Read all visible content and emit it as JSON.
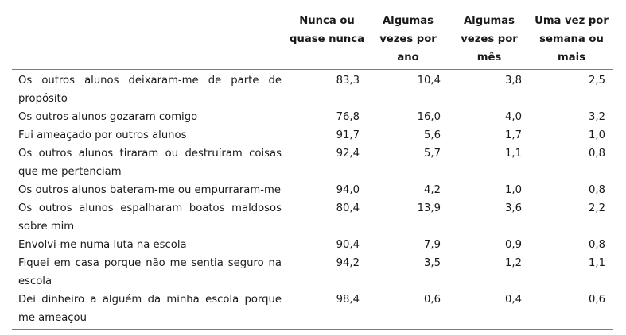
{
  "table": {
    "columns": [
      "Nunca ou quase nunca",
      "Algumas vezes por ano",
      "Algumas vezes por mês",
      "Uma vez por semana ou mais"
    ],
    "rows": [
      {
        "label": "Os outros alunos deixaram-me de parte de propósito",
        "values": [
          "83,3",
          "10,4",
          "3,8",
          "2,5"
        ]
      },
      {
        "label": "Os outros alunos gozaram comigo",
        "values": [
          "76,8",
          "16,0",
          "4,0",
          "3,2"
        ]
      },
      {
        "label": "Fui ameaçado por outros alunos",
        "values": [
          "91,7",
          "5,6",
          "1,7",
          "1,0"
        ]
      },
      {
        "label": "Os outros alunos tiraram ou destruíram coisas que me pertenciam",
        "values": [
          "92,4",
          "5,7",
          "1,1",
          "0,8"
        ]
      },
      {
        "label": "Os outros alunos bateram-me ou empurraram-me",
        "values": [
          "94,0",
          "4,2",
          "1,0",
          "0,8"
        ]
      },
      {
        "label": "Os outros alunos espalharam boatos maldosos sobre mim",
        "values": [
          "80,4",
          "13,9",
          "3,6",
          "2,2"
        ]
      },
      {
        "label": "Envolvi-me numa luta na escola",
        "values": [
          "90,4",
          "7,9",
          "0,9",
          "0,8"
        ]
      },
      {
        "label": "Fiquei em casa porque não me sentia seguro na escola",
        "values": [
          "94,2",
          "3,5",
          "1,2",
          "1,1"
        ]
      },
      {
        "label": "Dei dinheiro a alguém da minha escola porque me ameaçou",
        "values": [
          "98,4",
          "0,6",
          "0,4",
          "0,6"
        ]
      }
    ]
  }
}
